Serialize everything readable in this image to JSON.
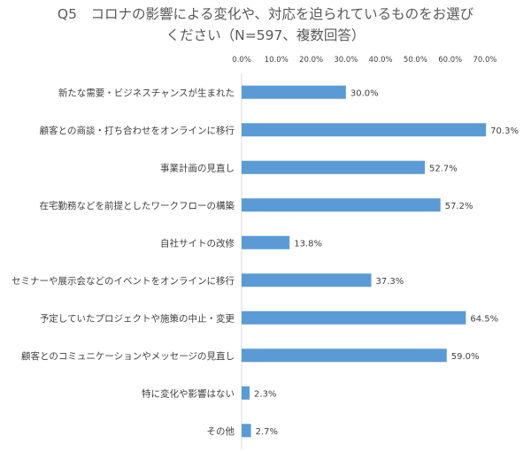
{
  "chart_data": {
    "type": "bar",
    "orientation": "horizontal",
    "title_line1": "Q5　コロナの影響による変化や、対応を迫られているものをお選び",
    "title_line2": "ください（N=597、複数回答）",
    "categories": [
      "新たな需要・ビジネスチャンスが生まれた",
      "顧客との商談・打ち合わせをオンラインに移行",
      "事業計画の見直し",
      "在宅勤務などを前提としたワークフローの構築",
      "自社サイトの改修",
      "セミナーや展示会などのイベントをオンラインに移行",
      "予定していたプロジェクトや施策の中止・変更",
      "顧客とのコミュニケーションやメッセージの見直し",
      "特に変化や影響はない",
      "その他"
    ],
    "values": [
      30.0,
      70.3,
      52.7,
      57.2,
      13.8,
      37.3,
      64.5,
      59.0,
      2.3,
      2.7
    ],
    "value_labels": [
      "30.0%",
      "70.3%",
      "52.7%",
      "57.2%",
      "13.8%",
      "37.3%",
      "64.5%",
      "59.0%",
      "2.3%",
      "2.7%"
    ],
    "x_ticks": [
      "0.0%",
      "10.0%",
      "20.0%",
      "30.0%",
      "40.0%",
      "50.0%",
      "60.0%",
      "70.0%"
    ],
    "xlim": [
      0,
      70
    ],
    "axis_position": "top",
    "grid": false,
    "bar_color": "#5b9bd5"
  }
}
